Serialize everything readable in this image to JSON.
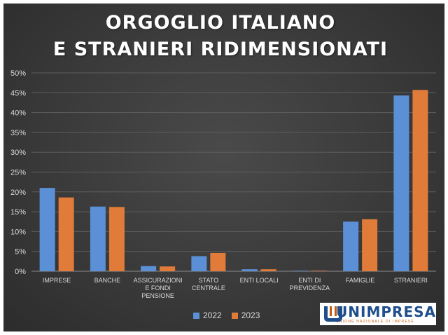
{
  "chart_data": {
    "type": "bar",
    "title_line1": "ORGOGLIO ITALIANO",
    "title_line2": "E STRANIERI RIDIMENSIONATI",
    "categories": [
      [
        "IMPRESE"
      ],
      [
        "BANCHE"
      ],
      [
        "ASSICURAZIONI",
        "E FONDI",
        "PENSIONE"
      ],
      [
        "STATO",
        "CENTRALE"
      ],
      [
        "ENTI LOCALI"
      ],
      [
        "ENTI DI",
        "PREVIDENZA"
      ],
      [
        "FAMIGLIE"
      ],
      [
        "STRANIERI"
      ]
    ],
    "series": [
      {
        "name": "2022",
        "color": "#5b8fd6",
        "values": [
          21.0,
          16.3,
          1.3,
          3.8,
          0.5,
          0.1,
          12.5,
          44.3
        ]
      },
      {
        "name": "2023",
        "color": "#e07b39",
        "values": [
          18.6,
          16.2,
          1.2,
          4.6,
          0.5,
          0.1,
          13.1,
          45.7
        ]
      }
    ],
    "ylim": [
      0,
      50
    ],
    "yticks": [
      "0%",
      "5%",
      "10%",
      "15%",
      "20%",
      "25%",
      "30%",
      "35%",
      "40%",
      "45%",
      "50%"
    ],
    "grid": true,
    "legend_position": "bottom"
  },
  "logo": {
    "name": "UNIMPRESA",
    "subtitle": "UNIONE NAZIONALE DI IMPRESE"
  }
}
